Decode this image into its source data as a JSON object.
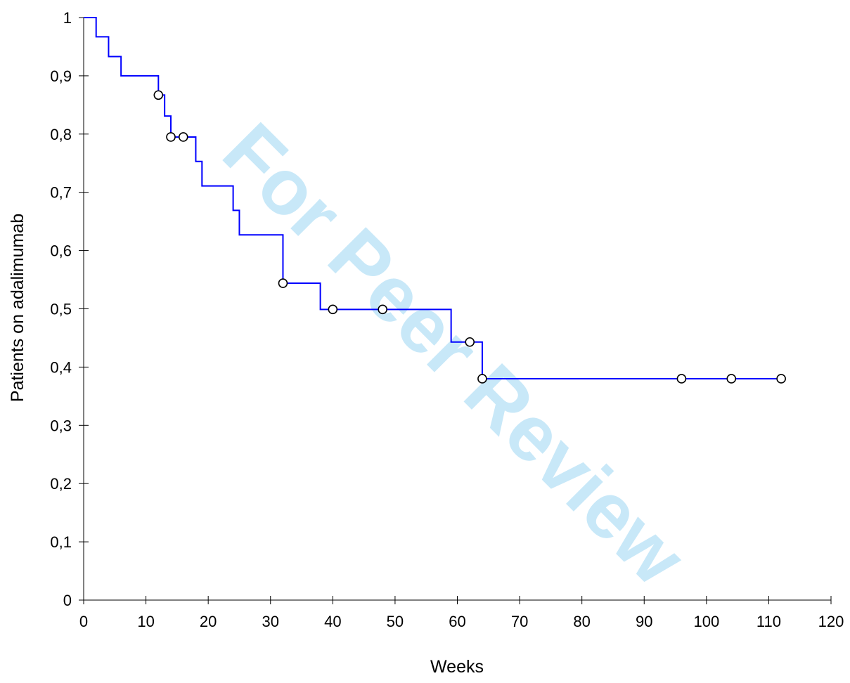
{
  "watermark": "For Peer Review",
  "chart_data": {
    "type": "line",
    "subtype": "kaplan-meier-step",
    "title": "",
    "xlabel": "Weeks",
    "ylabel": "Patients on adalimumab",
    "xlim": [
      0,
      120
    ],
    "ylim": [
      0,
      1
    ],
    "xticks": [
      0,
      10,
      20,
      30,
      40,
      50,
      60,
      70,
      80,
      90,
      100,
      110,
      120
    ],
    "xtick_labels": [
      "0",
      "10",
      "20",
      "30",
      "40",
      "50",
      "60",
      "70",
      "80",
      "90",
      "100",
      "110",
      "120"
    ],
    "yticks": [
      0,
      0.1,
      0.2,
      0.3,
      0.4,
      0.5,
      0.6,
      0.7,
      0.8,
      0.9,
      1
    ],
    "ytick_labels": [
      "0",
      "0,1",
      "0,2",
      "0,3",
      "0,4",
      "0,5",
      "0,6",
      "0,7",
      "0,8",
      "0,9",
      "1"
    ],
    "grid": false,
    "line_color": "#0000ff",
    "marker_style": "open-circle",
    "step_curve": [
      {
        "x": 0,
        "y": 1.0
      },
      {
        "x": 2,
        "y": 0.967
      },
      {
        "x": 4,
        "y": 0.933
      },
      {
        "x": 6,
        "y": 0.9
      },
      {
        "x": 12,
        "y": 0.867
      },
      {
        "x": 13,
        "y": 0.831
      },
      {
        "x": 14,
        "y": 0.795
      },
      {
        "x": 18,
        "y": 0.753
      },
      {
        "x": 19,
        "y": 0.711
      },
      {
        "x": 24,
        "y": 0.669
      },
      {
        "x": 25,
        "y": 0.627
      },
      {
        "x": 32,
        "y": 0.544
      },
      {
        "x": 38,
        "y": 0.499
      },
      {
        "x": 59,
        "y": 0.443
      },
      {
        "x": 64,
        "y": 0.38
      },
      {
        "x": 112,
        "y": 0.38
      }
    ],
    "censored": [
      {
        "x": 12,
        "y": 0.867
      },
      {
        "x": 14,
        "y": 0.795
      },
      {
        "x": 16,
        "y": 0.795
      },
      {
        "x": 32,
        "y": 0.544
      },
      {
        "x": 40,
        "y": 0.499
      },
      {
        "x": 48,
        "y": 0.499
      },
      {
        "x": 62,
        "y": 0.443
      },
      {
        "x": 64,
        "y": 0.38
      },
      {
        "x": 96,
        "y": 0.38
      },
      {
        "x": 104,
        "y": 0.38
      },
      {
        "x": 112,
        "y": 0.38
      }
    ]
  }
}
